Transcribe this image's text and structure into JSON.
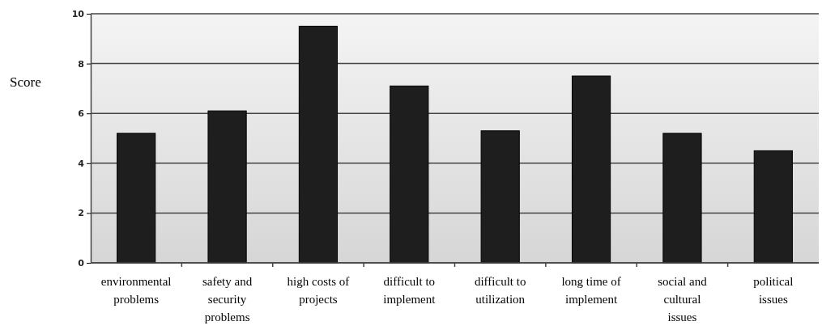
{
  "chart_data": {
    "type": "bar",
    "ylabel": "Score",
    "categories": [
      "environmental problems",
      "safety and security problems",
      "high costs of projects",
      "difficult to implement",
      "difficult to utilization",
      "long time of implement",
      "social and cultural issues",
      "political issues"
    ],
    "values": [
      5.2,
      6.1,
      9.5,
      7.1,
      5.3,
      7.5,
      5.2,
      4.5
    ],
    "color": "#1e1e1e",
    "ylim": [
      0,
      10
    ],
    "yticks": [
      0,
      2,
      4,
      6,
      8,
      10
    ],
    "grid": "y"
  }
}
